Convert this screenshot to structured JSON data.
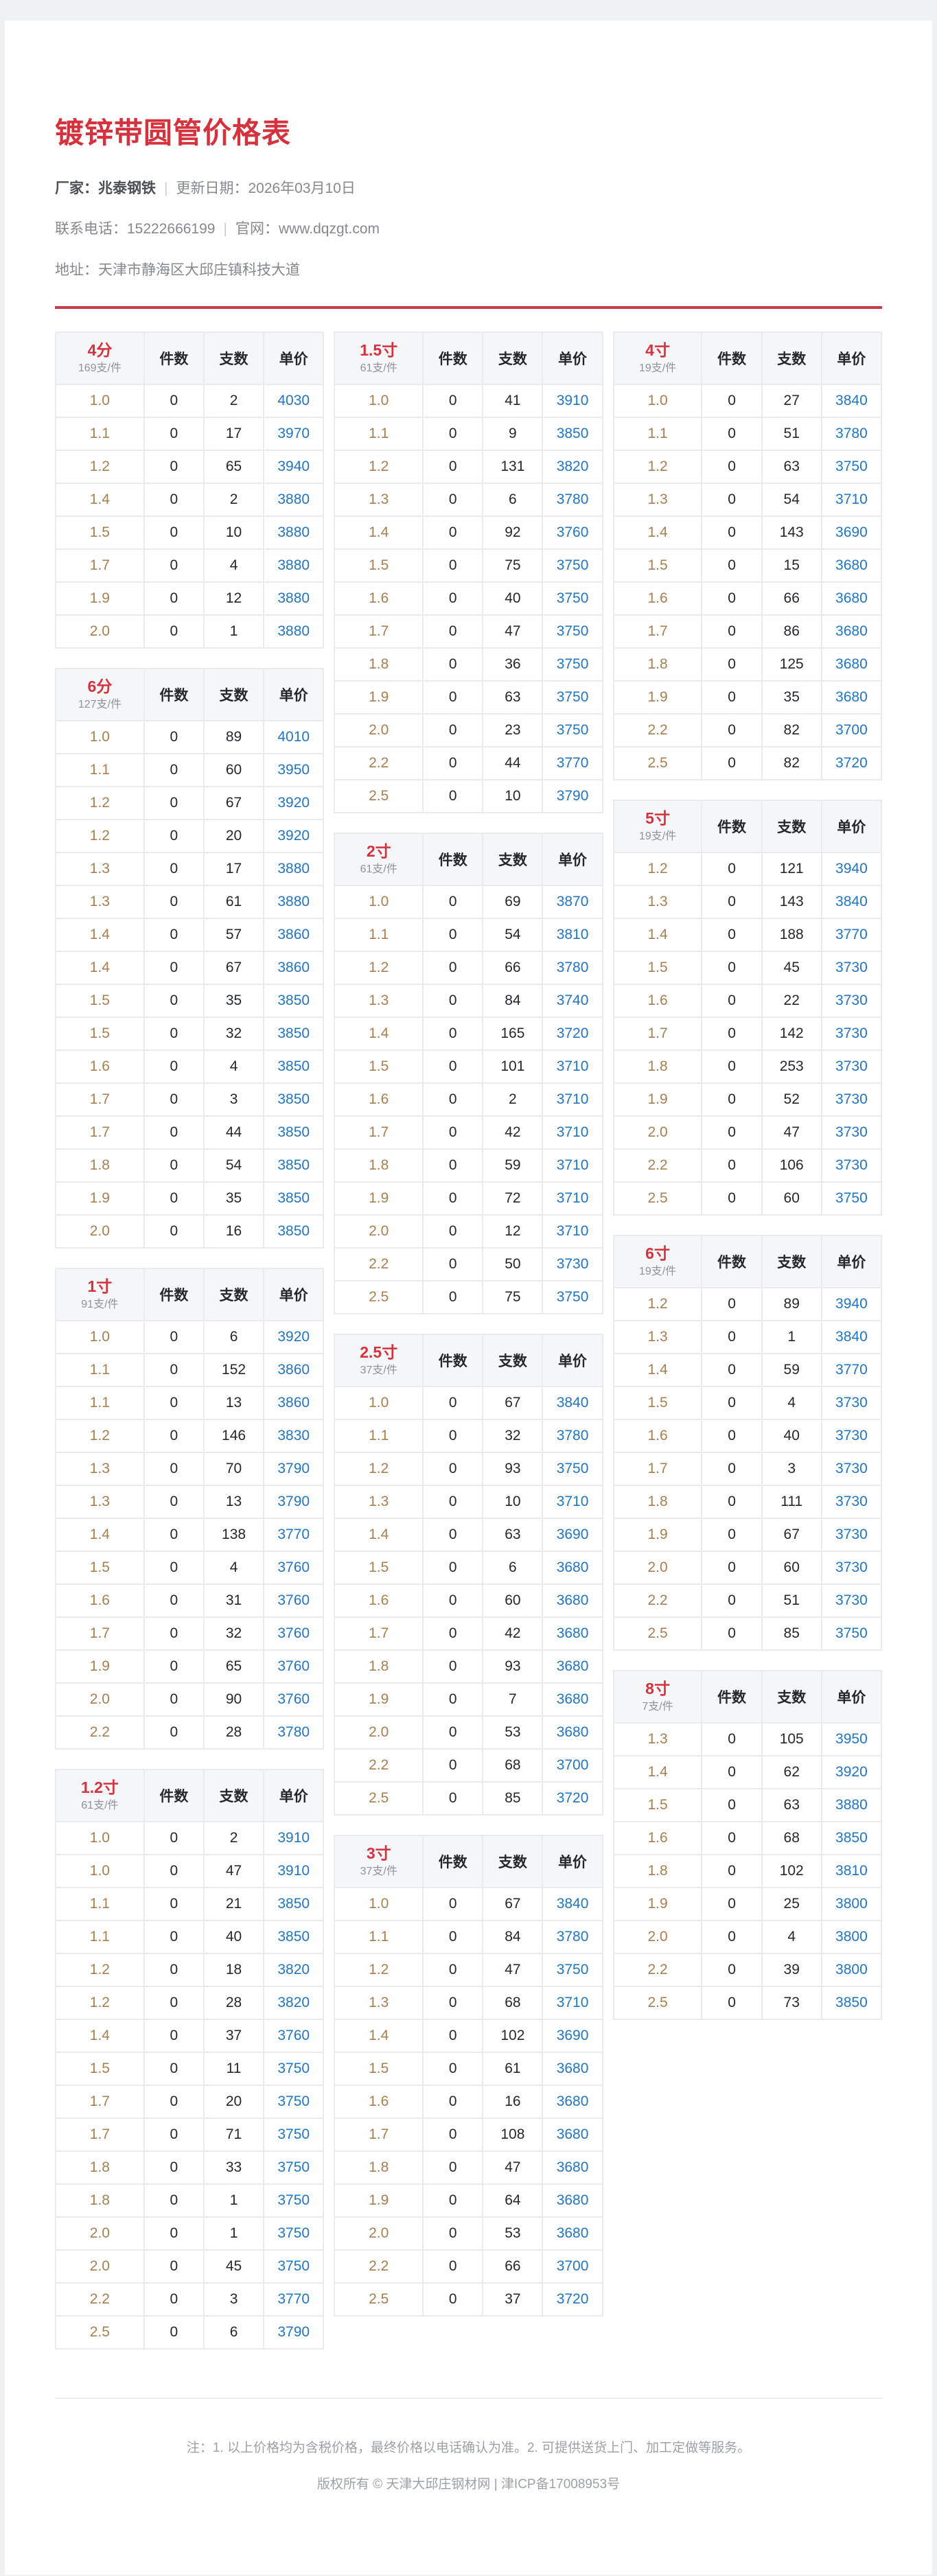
{
  "page": {
    "title": "镀锌带圆管价格表",
    "meta": {
      "vendor_label": "厂家：",
      "vendor": "兆泰钢铁",
      "separator": "|",
      "update": "更新日期：2026年03月10日",
      "phone": "联系电话：15222666199",
      "website": "官网：www.dqzgt.com",
      "address": "地址：天津市静海区大邱庄镇科技大道"
    },
    "footer": {
      "note": "注：1. 以上价格均为含税价格，最终价格以电话确认为准。2. 可提供送货上门、加工定做等服务。",
      "copyright": "版权所有 © 天津大邱庄钢材网 | 津ICP备17008953号"
    }
  },
  "colors": {
    "accent_red": "#d5323e",
    "divider_red": "#c53c4a",
    "price_blue": "#2176c5",
    "size_tan": "#a97f50",
    "header_bg": "#f5f6f8",
    "border": "#e9ebee",
    "page_bg": "#eff1f2"
  },
  "column_headers": [
    "件数",
    "支数",
    "单价"
  ],
  "tables": [
    {
      "name": "4分",
      "bundle": "169支/件",
      "col": 0,
      "rows": [
        [
          "1.0",
          "0",
          "2",
          "4030"
        ],
        [
          "1.1",
          "0",
          "17",
          "3970"
        ],
        [
          "1.2",
          "0",
          "65",
          "3940"
        ],
        [
          "1.4",
          "0",
          "2",
          "3880"
        ],
        [
          "1.5",
          "0",
          "10",
          "3880"
        ],
        [
          "1.7",
          "0",
          "4",
          "3880"
        ],
        [
          "1.9",
          "0",
          "12",
          "3880"
        ],
        [
          "2.0",
          "0",
          "1",
          "3880"
        ]
      ]
    },
    {
      "name": "6分",
      "bundle": "127支/件",
      "col": 0,
      "rows": [
        [
          "1.0",
          "0",
          "89",
          "4010"
        ],
        [
          "1.1",
          "0",
          "60",
          "3950"
        ],
        [
          "1.2",
          "0",
          "67",
          "3920"
        ],
        [
          "1.2",
          "0",
          "20",
          "3920"
        ],
        [
          "1.3",
          "0",
          "17",
          "3880"
        ],
        [
          "1.3",
          "0",
          "61",
          "3880"
        ],
        [
          "1.4",
          "0",
          "57",
          "3860"
        ],
        [
          "1.4",
          "0",
          "67",
          "3860"
        ],
        [
          "1.5",
          "0",
          "35",
          "3850"
        ],
        [
          "1.5",
          "0",
          "32",
          "3850"
        ],
        [
          "1.6",
          "0",
          "4",
          "3850"
        ],
        [
          "1.7",
          "0",
          "3",
          "3850"
        ],
        [
          "1.7",
          "0",
          "44",
          "3850"
        ],
        [
          "1.8",
          "0",
          "54",
          "3850"
        ],
        [
          "1.9",
          "0",
          "35",
          "3850"
        ],
        [
          "2.0",
          "0",
          "16",
          "3850"
        ]
      ]
    },
    {
      "name": "1寸",
      "bundle": "91支/件",
      "col": 0,
      "rows": [
        [
          "1.0",
          "0",
          "6",
          "3920"
        ],
        [
          "1.1",
          "0",
          "152",
          "3860"
        ],
        [
          "1.1",
          "0",
          "13",
          "3860"
        ],
        [
          "1.2",
          "0",
          "146",
          "3830"
        ],
        [
          "1.3",
          "0",
          "70",
          "3790"
        ],
        [
          "1.3",
          "0",
          "13",
          "3790"
        ],
        [
          "1.4",
          "0",
          "138",
          "3770"
        ],
        [
          "1.5",
          "0",
          "4",
          "3760"
        ],
        [
          "1.6",
          "0",
          "31",
          "3760"
        ],
        [
          "1.7",
          "0",
          "32",
          "3760"
        ],
        [
          "1.9",
          "0",
          "65",
          "3760"
        ],
        [
          "2.0",
          "0",
          "90",
          "3760"
        ],
        [
          "2.2",
          "0",
          "28",
          "3780"
        ]
      ]
    },
    {
      "name": "1.2寸",
      "bundle": "61支/件",
      "col": 0,
      "rows": [
        [
          "1.0",
          "0",
          "2",
          "3910"
        ],
        [
          "1.0",
          "0",
          "47",
          "3910"
        ],
        [
          "1.1",
          "0",
          "21",
          "3850"
        ],
        [
          "1.1",
          "0",
          "40",
          "3850"
        ],
        [
          "1.2",
          "0",
          "18",
          "3820"
        ],
        [
          "1.2",
          "0",
          "28",
          "3820"
        ],
        [
          "1.4",
          "0",
          "37",
          "3760"
        ],
        [
          "1.5",
          "0",
          "11",
          "3750"
        ],
        [
          "1.7",
          "0",
          "20",
          "3750"
        ],
        [
          "1.7",
          "0",
          "71",
          "3750"
        ],
        [
          "1.8",
          "0",
          "33",
          "3750"
        ],
        [
          "1.8",
          "0",
          "1",
          "3750"
        ],
        [
          "2.0",
          "0",
          "1",
          "3750"
        ],
        [
          "2.0",
          "0",
          "45",
          "3750"
        ],
        [
          "2.2",
          "0",
          "3",
          "3770"
        ],
        [
          "2.5",
          "0",
          "6",
          "3790"
        ]
      ]
    },
    {
      "name": "1.5寸",
      "bundle": "61支/件",
      "col": 1,
      "rows": [
        [
          "1.0",
          "0",
          "41",
          "3910"
        ],
        [
          "1.1",
          "0",
          "9",
          "3850"
        ],
        [
          "1.2",
          "0",
          "131",
          "3820"
        ],
        [
          "1.3",
          "0",
          "6",
          "3780"
        ],
        [
          "1.4",
          "0",
          "92",
          "3760"
        ],
        [
          "1.5",
          "0",
          "75",
          "3750"
        ],
        [
          "1.6",
          "0",
          "40",
          "3750"
        ],
        [
          "1.7",
          "0",
          "47",
          "3750"
        ],
        [
          "1.8",
          "0",
          "36",
          "3750"
        ],
        [
          "1.9",
          "0",
          "63",
          "3750"
        ],
        [
          "2.0",
          "0",
          "23",
          "3750"
        ],
        [
          "2.2",
          "0",
          "44",
          "3770"
        ],
        [
          "2.5",
          "0",
          "10",
          "3790"
        ]
      ]
    },
    {
      "name": "2寸",
      "bundle": "61支/件",
      "col": 1,
      "rows": [
        [
          "1.0",
          "0",
          "69",
          "3870"
        ],
        [
          "1.1",
          "0",
          "54",
          "3810"
        ],
        [
          "1.2",
          "0",
          "66",
          "3780"
        ],
        [
          "1.3",
          "0",
          "84",
          "3740"
        ],
        [
          "1.4",
          "0",
          "165",
          "3720"
        ],
        [
          "1.5",
          "0",
          "101",
          "3710"
        ],
        [
          "1.6",
          "0",
          "2",
          "3710"
        ],
        [
          "1.7",
          "0",
          "42",
          "3710"
        ],
        [
          "1.8",
          "0",
          "59",
          "3710"
        ],
        [
          "1.9",
          "0",
          "72",
          "3710"
        ],
        [
          "2.0",
          "0",
          "12",
          "3710"
        ],
        [
          "2.2",
          "0",
          "50",
          "3730"
        ],
        [
          "2.5",
          "0",
          "75",
          "3750"
        ]
      ]
    },
    {
      "name": "2.5寸",
      "bundle": "37支/件",
      "col": 1,
      "rows": [
        [
          "1.0",
          "0",
          "67",
          "3840"
        ],
        [
          "1.1",
          "0",
          "32",
          "3780"
        ],
        [
          "1.2",
          "0",
          "93",
          "3750"
        ],
        [
          "1.3",
          "0",
          "10",
          "3710"
        ],
        [
          "1.4",
          "0",
          "63",
          "3690"
        ],
        [
          "1.5",
          "0",
          "6",
          "3680"
        ],
        [
          "1.6",
          "0",
          "60",
          "3680"
        ],
        [
          "1.7",
          "0",
          "42",
          "3680"
        ],
        [
          "1.8",
          "0",
          "93",
          "3680"
        ],
        [
          "1.9",
          "0",
          "7",
          "3680"
        ],
        [
          "2.0",
          "0",
          "53",
          "3680"
        ],
        [
          "2.2",
          "0",
          "68",
          "3700"
        ],
        [
          "2.5",
          "0",
          "85",
          "3720"
        ]
      ]
    },
    {
      "name": "3寸",
      "bundle": "37支/件",
      "col": 1,
      "rows": [
        [
          "1.0",
          "0",
          "67",
          "3840"
        ],
        [
          "1.1",
          "0",
          "84",
          "3780"
        ],
        [
          "1.2",
          "0",
          "47",
          "3750"
        ],
        [
          "1.3",
          "0",
          "68",
          "3710"
        ],
        [
          "1.4",
          "0",
          "102",
          "3690"
        ],
        [
          "1.5",
          "0",
          "61",
          "3680"
        ],
        [
          "1.6",
          "0",
          "16",
          "3680"
        ],
        [
          "1.7",
          "0",
          "108",
          "3680"
        ],
        [
          "1.8",
          "0",
          "47",
          "3680"
        ],
        [
          "1.9",
          "0",
          "64",
          "3680"
        ],
        [
          "2.0",
          "0",
          "53",
          "3680"
        ],
        [
          "2.2",
          "0",
          "66",
          "3700"
        ],
        [
          "2.5",
          "0",
          "37",
          "3720"
        ]
      ]
    },
    {
      "name": "4寸",
      "bundle": "19支/件",
      "col": 2,
      "rows": [
        [
          "1.0",
          "0",
          "27",
          "3840"
        ],
        [
          "1.1",
          "0",
          "51",
          "3780"
        ],
        [
          "1.2",
          "0",
          "63",
          "3750"
        ],
        [
          "1.3",
          "0",
          "54",
          "3710"
        ],
        [
          "1.4",
          "0",
          "143",
          "3690"
        ],
        [
          "1.5",
          "0",
          "15",
          "3680"
        ],
        [
          "1.6",
          "0",
          "66",
          "3680"
        ],
        [
          "1.7",
          "0",
          "86",
          "3680"
        ],
        [
          "1.8",
          "0",
          "125",
          "3680"
        ],
        [
          "1.9",
          "0",
          "35",
          "3680"
        ],
        [
          "2.2",
          "0",
          "82",
          "3700"
        ],
        [
          "2.5",
          "0",
          "82",
          "3720"
        ]
      ]
    },
    {
      "name": "5寸",
      "bundle": "19支/件",
      "col": 2,
      "rows": [
        [
          "1.2",
          "0",
          "121",
          "3940"
        ],
        [
          "1.3",
          "0",
          "143",
          "3840"
        ],
        [
          "1.4",
          "0",
          "188",
          "3770"
        ],
        [
          "1.5",
          "0",
          "45",
          "3730"
        ],
        [
          "1.6",
          "0",
          "22",
          "3730"
        ],
        [
          "1.7",
          "0",
          "142",
          "3730"
        ],
        [
          "1.8",
          "0",
          "253",
          "3730"
        ],
        [
          "1.9",
          "0",
          "52",
          "3730"
        ],
        [
          "2.0",
          "0",
          "47",
          "3730"
        ],
        [
          "2.2",
          "0",
          "106",
          "3730"
        ],
        [
          "2.5",
          "0",
          "60",
          "3750"
        ]
      ]
    },
    {
      "name": "6寸",
      "bundle": "19支/件",
      "col": 2,
      "rows": [
        [
          "1.2",
          "0",
          "89",
          "3940"
        ],
        [
          "1.3",
          "0",
          "1",
          "3840"
        ],
        [
          "1.4",
          "0",
          "59",
          "3770"
        ],
        [
          "1.5",
          "0",
          "4",
          "3730"
        ],
        [
          "1.6",
          "0",
          "40",
          "3730"
        ],
        [
          "1.7",
          "0",
          "3",
          "3730"
        ],
        [
          "1.8",
          "0",
          "111",
          "3730"
        ],
        [
          "1.9",
          "0",
          "67",
          "3730"
        ],
        [
          "2.0",
          "0",
          "60",
          "3730"
        ],
        [
          "2.2",
          "0",
          "51",
          "3730"
        ],
        [
          "2.5",
          "0",
          "85",
          "3750"
        ]
      ]
    },
    {
      "name": "8寸",
      "bundle": "7支/件",
      "col": 2,
      "rows": [
        [
          "1.3",
          "0",
          "105",
          "3950"
        ],
        [
          "1.4",
          "0",
          "62",
          "3920"
        ],
        [
          "1.5",
          "0",
          "63",
          "3880"
        ],
        [
          "1.6",
          "0",
          "68",
          "3850"
        ],
        [
          "1.8",
          "0",
          "102",
          "3810"
        ],
        [
          "1.9",
          "0",
          "25",
          "3800"
        ],
        [
          "2.0",
          "0",
          "4",
          "3800"
        ],
        [
          "2.2",
          "0",
          "39",
          "3800"
        ],
        [
          "2.5",
          "0",
          "73",
          "3850"
        ]
      ]
    }
  ]
}
